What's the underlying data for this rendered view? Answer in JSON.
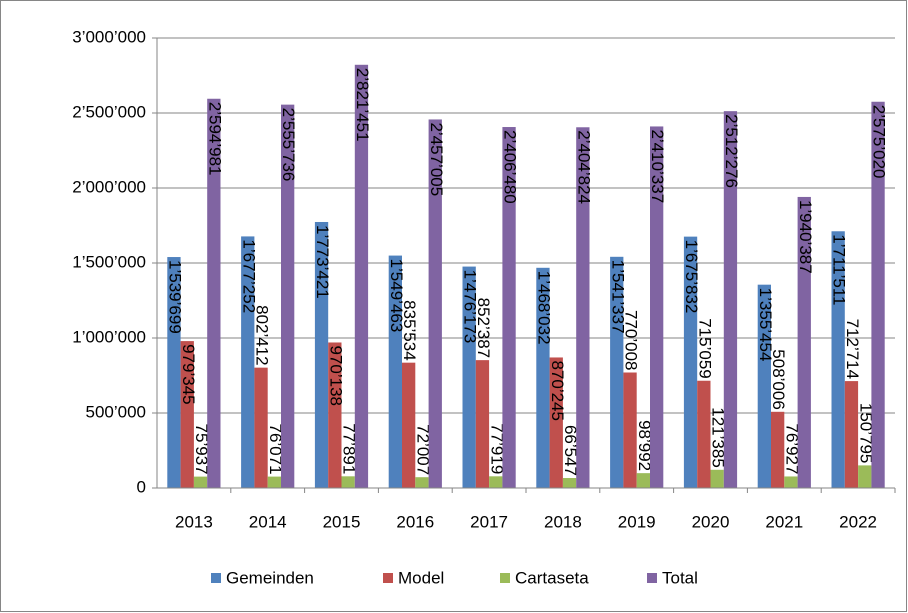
{
  "chart_data": {
    "type": "bar",
    "categories": [
      "2013",
      "2014",
      "2015",
      "2016",
      "2017",
      "2018",
      "2019",
      "2020",
      "2021",
      "2022"
    ],
    "series": [
      {
        "name": "Gemeinden",
        "color": "#4f81bd",
        "values": [
          1539699,
          1677252,
          1773421,
          1549463,
          1476173,
          1468032,
          1541337,
          1675832,
          1355454,
          1711511
        ],
        "value_labels": [
          "1’539’699",
          "1’677’252",
          "1’773’421",
          "1’549’463",
          "1’476’173",
          "1’468’032",
          "1’541’337",
          "1’675’832",
          "1’355’454",
          "1’711’511"
        ]
      },
      {
        "name": "Model",
        "color": "#c0504d",
        "values": [
          979345,
          802412,
          970138,
          835534,
          852387,
          870245,
          770008,
          715059,
          508006,
          712714
        ],
        "value_labels": [
          "979’345",
          "802’412",
          "970’138",
          "835’534",
          "852’387",
          "870’245",
          "770’008",
          "715’059",
          "508’006",
          "712’714"
        ]
      },
      {
        "name": "Cartaseta",
        "color": "#9bbb59",
        "values": [
          75937,
          76071,
          77891,
          72007,
          77919,
          66547,
          98992,
          121385,
          76927,
          150795
        ],
        "value_labels": [
          "75’937",
          "76’071",
          "77’891",
          "72’007",
          "77’919",
          "66’547",
          "98’992",
          "121’385",
          "76’927",
          "150’795"
        ]
      },
      {
        "name": "Total",
        "color": "#8064a2",
        "values": [
          2594981,
          2555736,
          2821451,
          2457005,
          2406480,
          2404824,
          2410337,
          2512276,
          1940387,
          2575020
        ],
        "value_labels": [
          "2’594’981",
          "2’555’736",
          "2’821’451",
          "2’457’005",
          "2’406’480",
          "2’404’824",
          "2’410’337",
          "2’512’276",
          "1’940’387",
          "2’575’020"
        ]
      }
    ],
    "ylim": [
      0,
      3000000
    ],
    "yticks": [
      {
        "value": 0,
        "label": "0"
      },
      {
        "value": 500000,
        "label": "500’000"
      },
      {
        "value": 1000000,
        "label": "1’000’000"
      },
      {
        "value": 1500000,
        "label": "1’500’000"
      },
      {
        "value": 2000000,
        "label": "2’000’000"
      },
      {
        "value": 2500000,
        "label": "2’500’000"
      },
      {
        "value": 3000000,
        "label": "3’000’000"
      }
    ],
    "grid": true,
    "legend": "bottom"
  }
}
